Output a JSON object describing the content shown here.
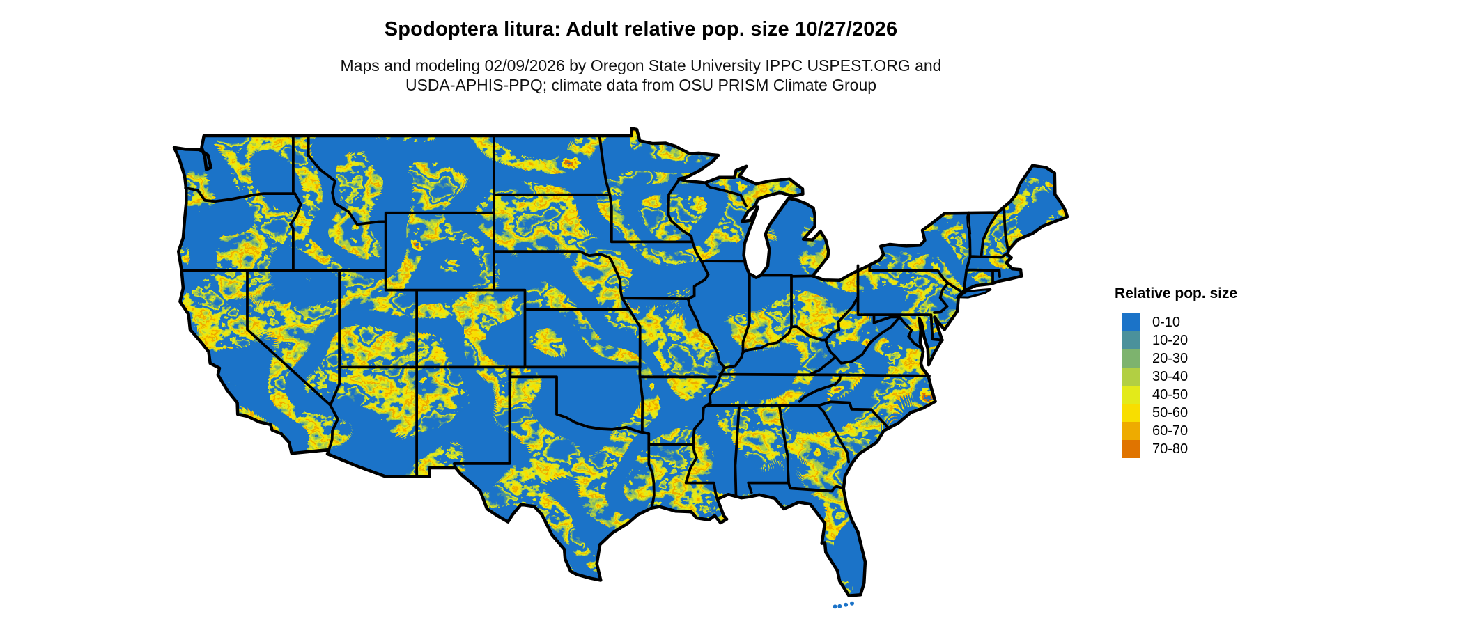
{
  "title": "Spodoptera litura: Adult relative pop. size 10/27/2026",
  "subtitle_line1": "Maps and modeling 02/09/2026 by Oregon State University IPPC USPEST.ORG and",
  "subtitle_line2": "USDA-APHIS-PPQ; climate data from OSU PRISM Climate Group",
  "map": {
    "region": "Contiguous United States",
    "kind": "raster-choropleth-map",
    "base_color": "#1b73c8",
    "state_border_color": "#000000",
    "water_color": "#ffffff",
    "background_color": "#ffffff"
  },
  "legend": {
    "title": "Relative pop. size",
    "bins": [
      {
        "label": "0-10",
        "color": "#1b73c8"
      },
      {
        "label": "10-20",
        "color": "#4b919b"
      },
      {
        "label": "20-30",
        "color": "#7db36e"
      },
      {
        "label": "30-40",
        "color": "#b2cf43"
      },
      {
        "label": "40-50",
        "color": "#e3ea1a"
      },
      {
        "label": "50-60",
        "color": "#f8de00"
      },
      {
        "label": "60-70",
        "color": "#eeab00"
      },
      {
        "label": "70-80",
        "color": "#e07400"
      }
    ]
  }
}
